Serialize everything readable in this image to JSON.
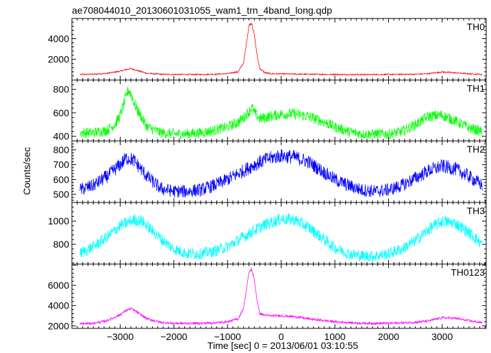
{
  "chart_data": {
    "type": "line",
    "title": "ae708044010_20130601031055_wam1_trn_4band_long.qdp",
    "xlabel": "Time [sec] 0 = 2013/06/01 03:10:55",
    "ylabel": "Counts/sec",
    "xlim": [
      -3900,
      3820
    ],
    "x_ticks": [
      -3000,
      -2000,
      -1000,
      0,
      1000,
      2000,
      3000
    ],
    "x_tick_labels": [
      "−3000",
      "−2000",
      "−1000",
      "0",
      "1000",
      "2000",
      "3000"
    ],
    "panels": [
      {
        "name": "TH0",
        "color": "#ff0000",
        "ylim": [
          0,
          5950
        ],
        "y_ticks": [
          2000,
          4000
        ],
        "x": [
          -3750,
          -3500,
          -3250,
          -3000,
          -2900,
          -2800,
          -2700,
          -2500,
          -2250,
          -2000,
          -1750,
          -1500,
          -1250,
          -1000,
          -800,
          -700,
          -650,
          -600,
          -550,
          -500,
          -450,
          -400,
          -300,
          -200,
          -100,
          0,
          250,
          500,
          1000,
          1500,
          2000,
          2500,
          2750,
          3000,
          3250,
          3500,
          3750
        ],
        "y": [
          540,
          560,
          650,
          850,
          1000,
          1100,
          950,
          650,
          560,
          540,
          530,
          540,
          560,
          620,
          800,
          1700,
          3500,
          5300,
          5500,
          4300,
          2400,
          1100,
          700,
          620,
          600,
          600,
          580,
          560,
          540,
          530,
          540,
          560,
          620,
          780,
          700,
          600,
          540
        ],
        "noise": 60
      },
      {
        "name": "TH1",
        "color": "#00ff00",
        "ylim": [
          360,
          880
        ],
        "y_ticks": [
          400,
          600,
          800
        ],
        "x": [
          -3750,
          -3500,
          -3250,
          -3100,
          -3000,
          -2900,
          -2850,
          -2800,
          -2700,
          -2500,
          -2250,
          -2000,
          -1750,
          -1500,
          -1250,
          -1000,
          -800,
          -700,
          -600,
          -550,
          -500,
          -400,
          -300,
          -200,
          0,
          250,
          500,
          750,
          1000,
          1250,
          1500,
          1750,
          2000,
          2250,
          2500,
          2750,
          3000,
          3250,
          3500,
          3750
        ],
        "y": [
          430,
          430,
          450,
          500,
          580,
          720,
          800,
          760,
          640,
          480,
          430,
          420,
          420,
          430,
          450,
          480,
          520,
          560,
          610,
          650,
          600,
          550,
          560,
          570,
          590,
          590,
          570,
          530,
          480,
          440,
          420,
          420,
          420,
          440,
          500,
          570,
          580,
          530,
          470,
          440
        ],
        "noise": 45
      },
      {
        "name": "TH2",
        "color": "#0000ff",
        "ylim": [
          445,
          860
        ],
        "y_ticks": [
          500,
          600,
          700,
          800
        ],
        "x": [
          -3750,
          -3500,
          -3250,
          -3000,
          -2900,
          -2850,
          -2750,
          -2500,
          -2250,
          -2000,
          -1750,
          -1500,
          -1250,
          -1000,
          -750,
          -500,
          -250,
          0,
          250,
          500,
          750,
          1000,
          1250,
          1500,
          1750,
          2000,
          2250,
          2500,
          2750,
          3000,
          3250,
          3500,
          3750
        ],
        "y": [
          530,
          560,
          620,
          700,
          740,
          745,
          730,
          620,
          540,
          520,
          520,
          530,
          560,
          600,
          650,
          700,
          740,
          760,
          750,
          720,
          660,
          600,
          560,
          530,
          520,
          530,
          560,
          610,
          660,
          690,
          670,
          620,
          560
        ],
        "noise": 45
      },
      {
        "name": "TH3",
        "color": "#00ffff",
        "ylim": [
          630,
          1160
        ],
        "y_ticks": [
          800,
          1000
        ],
        "x": [
          -3750,
          -3500,
          -3250,
          -3000,
          -2750,
          -2600,
          -2500,
          -2250,
          -2000,
          -1750,
          -1500,
          -1250,
          -1000,
          -750,
          -500,
          -250,
          0,
          250,
          500,
          750,
          1000,
          1250,
          1500,
          1750,
          2000,
          2250,
          2500,
          2750,
          3000,
          3250,
          3500,
          3750
        ],
        "y": [
          720,
          780,
          860,
          960,
          1010,
          1000,
          960,
          850,
          760,
          720,
          720,
          740,
          780,
          850,
          920,
          980,
          1020,
          1010,
          950,
          860,
          770,
          720,
          700,
          700,
          720,
          760,
          830,
          930,
          1000,
          980,
          900,
          800
        ],
        "noise": 50
      },
      {
        "name": "TH0123",
        "color": "#ff00ff",
        "ylim": [
          1750,
          8100
        ],
        "y_ticks": [
          2000,
          4000,
          6000
        ],
        "x": [
          -3750,
          -3500,
          -3250,
          -3000,
          -2900,
          -2800,
          -2700,
          -2500,
          -2250,
          -2000,
          -1750,
          -1500,
          -1250,
          -1000,
          -800,
          -700,
          -650,
          -600,
          -550,
          -500,
          -450,
          -400,
          -300,
          -200,
          0,
          250,
          500,
          1000,
          1500,
          2000,
          2500,
          2750,
          3000,
          3250,
          3500,
          3750
        ],
        "y": [
          2200,
          2250,
          2500,
          3100,
          3500,
          3700,
          3400,
          2700,
          2350,
          2250,
          2250,
          2250,
          2300,
          2400,
          2700,
          3800,
          5500,
          7300,
          7600,
          6500,
          4500,
          3200,
          3050,
          3000,
          3000,
          2900,
          2700,
          2400,
          2250,
          2250,
          2350,
          2500,
          2800,
          2750,
          2500,
          2300
        ],
        "noise": 110
      }
    ]
  }
}
